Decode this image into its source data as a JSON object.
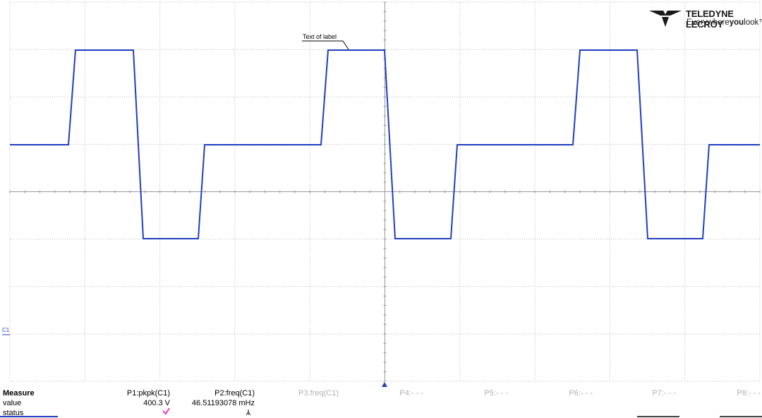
{
  "logo": {
    "brand": "TELEDYNE LECROY",
    "tagline": [
      "Everywhere",
      "you",
      "look™"
    ]
  },
  "trace_label": "Text of label",
  "channel_marker": "C1",
  "measure": {
    "header": [
      "Measure",
      "P1:pkpk(C1)",
      "P2:freq(C1)",
      "P3:freq(C1)",
      "P4:- - -",
      "P5:- - -",
      "P6:- - -",
      "P7:- - -",
      "P8:- - -"
    ],
    "value_row": [
      "value",
      "400.3 V",
      "46.51193078 mHz"
    ],
    "status_row": [
      "status"
    ]
  }
}
